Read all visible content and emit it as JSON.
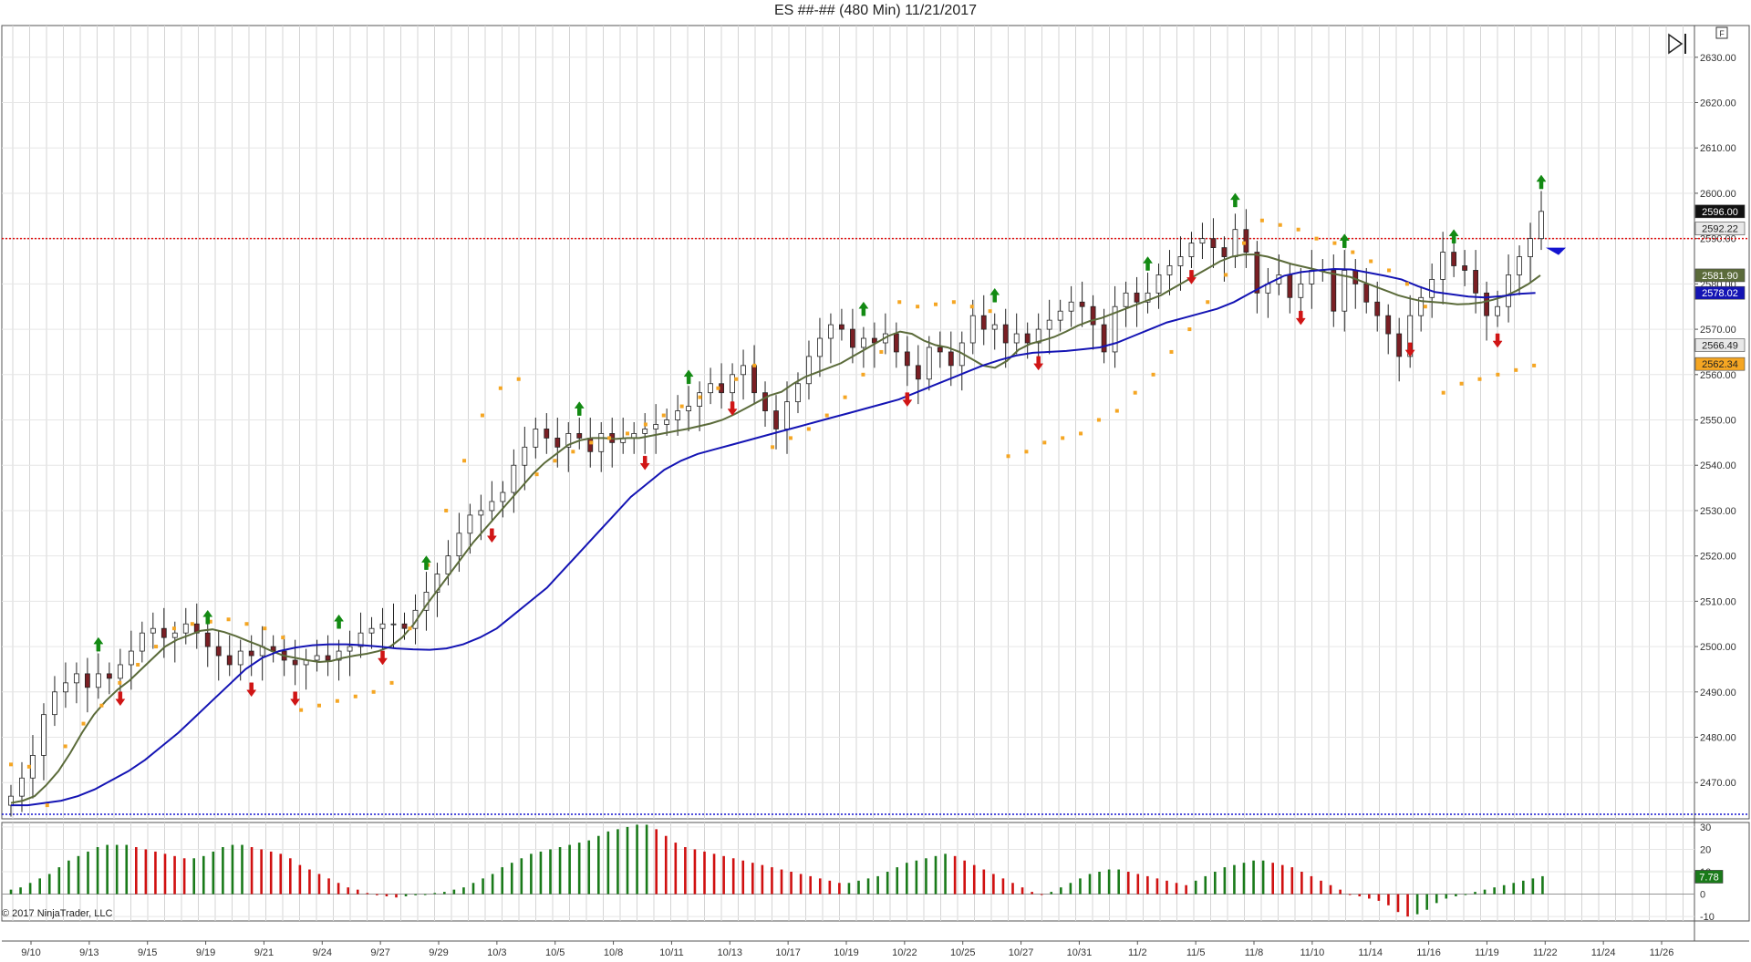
{
  "window": {
    "title": "ES ##-## (480 Min)  11/21/2017",
    "copyright": "© 2017 NinjaTrader, LLC"
  },
  "toolbar": {
    "icons": [
      "skip-to-end-icon",
      "panel-f-icon"
    ],
    "f_label": "F"
  },
  "colors": {
    "up": "#2a2a2a",
    "down": "#7a1f24",
    "ema_fast": "#5b6b3a",
    "ema_slow": "#1414b4",
    "psar": "#f5a623",
    "osc_up": "#1a7a1a",
    "osc_down": "#d01010",
    "hline_red": "#e01010",
    "hline_blue": "#1414d0",
    "signal_up": "#138a13",
    "signal_down": "#d01515"
  },
  "chart_data": [
    {
      "type": "candlestick",
      "title": "ES ##-## (480 Min)  11/21/2017",
      "x_ticks": [
        "9/10",
        "9/13",
        "9/15",
        "9/19",
        "9/21",
        "9/24",
        "9/27",
        "9/29",
        "10/3",
        "10/5",
        "10/8",
        "10/11",
        "10/13",
        "10/17",
        "10/19",
        "10/22",
        "10/25",
        "10/27",
        "10/31",
        "11/2",
        "11/5",
        "11/8",
        "11/10",
        "11/14",
        "11/16",
        "11/19",
        "11/22",
        "11/24",
        "11/26"
      ],
      "y_ticks": [
        2470,
        2480,
        2490,
        2500,
        2510,
        2520,
        2530,
        2540,
        2550,
        2560,
        2570,
        2580,
        2590,
        2600,
        2610,
        2620,
        2630
      ],
      "ylim": [
        2462,
        2637
      ],
      "grid": true,
      "series_close": [
        2467,
        2471,
        2476,
        2485,
        2490,
        2492,
        2494,
        2491,
        2494,
        2493,
        2496,
        2499,
        2503,
        2504,
        2502,
        2503,
        2505,
        2503,
        2500,
        2498,
        2496,
        2499,
        2498,
        2500,
        2499,
        2497,
        2496,
        2497,
        2498,
        2497,
        2499,
        2500,
        2503,
        2504,
        2505,
        2505,
        2504,
        2508,
        2512,
        2516,
        2520,
        2525,
        2529,
        2530,
        2532,
        2534,
        2540,
        2544,
        2548,
        2546,
        2544,
        2547,
        2546,
        2543,
        2547,
        2545,
        2546,
        2547,
        2548,
        2549,
        2550,
        2552,
        2553,
        2556,
        2558,
        2556,
        2560,
        2562,
        2556,
        2552,
        2548,
        2554,
        2558,
        2564,
        2568,
        2571,
        2570,
        2566,
        2568,
        2567,
        2569,
        2565,
        2562,
        2559,
        2566,
        2565,
        2562,
        2567,
        2573,
        2570,
        2571,
        2567,
        2569,
        2567,
        2570,
        2572,
        2574,
        2576,
        2575,
        2571,
        2565,
        2575,
        2578,
        2576,
        2578,
        2582,
        2584,
        2586,
        2589,
        2590,
        2588,
        2586,
        2592,
        2587,
        2578,
        2580,
        2582,
        2577,
        2580,
        2583,
        2583,
        2574,
        2583,
        2580,
        2576,
        2573,
        2569,
        2564,
        2573,
        2577,
        2581,
        2587,
        2584,
        2583,
        2578,
        2573,
        2575,
        2582,
        2586,
        2590,
        2596
      ],
      "ema_fast": [
        2465.5,
        2466.0,
        2467.0,
        2469.5,
        2472.5,
        2476.5,
        2481.0,
        2485.0,
        2488.0,
        2490.5,
        2492.5,
        2495.0,
        2497.5,
        2500.0,
        2501.5,
        2502.5,
        2503.5,
        2503.8,
        2503.2,
        2502.3,
        2501.2,
        2500.2,
        2499.0,
        2498.0,
        2497.5,
        2497.0,
        2496.6,
        2496.8,
        2497.5,
        2498.0,
        2498.4,
        2499.0,
        2500.0,
        2502.0,
        2505.0,
        2509.0,
        2512.5,
        2516.0,
        2519.5,
        2523.0,
        2526.0,
        2529.0,
        2532.0,
        2535.0,
        2538.0,
        2540.5,
        2542.5,
        2544.5,
        2545.5,
        2546.0,
        2546.0,
        2545.8,
        2546.0,
        2546.0,
        2546.5,
        2547.0,
        2547.5,
        2548.0,
        2548.6,
        2549.2,
        2550.0,
        2551.2,
        2552.6,
        2554.0,
        2555.4,
        2556.2,
        2558.0,
        2559.5,
        2560.5,
        2561.5,
        2562.5,
        2564.0,
        2565.5,
        2567.0,
        2568.5,
        2569.5,
        2569.0,
        2567.5,
        2566.5,
        2566.0,
        2565.0,
        2563.5,
        2562.0,
        2561.5,
        2563.0,
        2565.5,
        2566.8,
        2567.5,
        2568.3,
        2569.5,
        2570.8,
        2571.8,
        2572.5,
        2573.5,
        2574.5,
        2575.5,
        2576.5,
        2577.5,
        2579.0,
        2580.5,
        2582.0,
        2583.5,
        2585.0,
        2586.0,
        2586.5,
        2586.5,
        2586.0,
        2585.2,
        2584.4,
        2583.8,
        2583.2,
        2582.5,
        2582.0,
        2581.5,
        2580.5,
        2579.5,
        2578.5,
        2577.5,
        2576.8,
        2576.2,
        2576.0,
        2575.8,
        2575.5,
        2575.6,
        2575.9,
        2576.5,
        2577.3,
        2578.5,
        2580.0,
        2581.9
      ],
      "ema_slow": [
        2465,
        2465,
        2465.5,
        2466,
        2467,
        2468.5,
        2470.5,
        2472.5,
        2475,
        2478,
        2481,
        2484.5,
        2488,
        2491.5,
        2495,
        2497.5,
        2499,
        2499.8,
        2500.3,
        2500.5,
        2500.5,
        2500.3,
        2500.0,
        2499.6,
        2499.4,
        2499.3,
        2499.6,
        2500.5,
        2502,
        2504,
        2507,
        2510,
        2513,
        2517,
        2521,
        2525,
        2529,
        2533,
        2536,
        2539,
        2541,
        2542.5,
        2543.5,
        2544.5,
        2545.5,
        2546.5,
        2547.5,
        2548.5,
        2549.5,
        2550.5,
        2551.5,
        2552.5,
        2553.5,
        2554.5,
        2556,
        2557.5,
        2559,
        2560.5,
        2562,
        2563.2,
        2564.2,
        2564.8,
        2565.0,
        2565.2,
        2565.6,
        2566.0,
        2567.0,
        2568.5,
        2570.0,
        2571.5,
        2572.5,
        2573.5,
        2574.5,
        2576.0,
        2578.0,
        2580.0,
        2581.8,
        2582.6,
        2583.0,
        2583.3,
        2583.2,
        2582.5,
        2581.8,
        2581.0,
        2579.5,
        2578.2,
        2577.7,
        2577.2,
        2577.0,
        2577.3,
        2577.8,
        2578.0
      ],
      "psar": [
        2474,
        2473.5,
        2465,
        2478,
        2483,
        2487,
        2492,
        2496,
        2500,
        2504,
        2505,
        2505.5,
        2506,
        2505,
        2504,
        2502,
        2486,
        2487,
        2488,
        2489,
        2490,
        2492,
        2504,
        2518,
        2530,
        2541,
        2551,
        2557,
        2559,
        2538,
        2541,
        2543,
        2545,
        2546,
        2547,
        2549,
        2551,
        2553,
        2555,
        2557,
        2559,
        2562,
        2544,
        2546,
        2548,
        2551,
        2555,
        2560,
        2565,
        2576,
        2575,
        2575.5,
        2576,
        2575,
        2574,
        2542,
        2543,
        2545,
        2546,
        2547,
        2550,
        2552,
        2556,
        2560,
        2565,
        2570,
        2576,
        2582,
        2589,
        2594,
        2593,
        2592,
        2590,
        2589,
        2587,
        2585,
        2583,
        2580,
        2575,
        2556,
        2558,
        2559,
        2560,
        2561,
        2562
      ],
      "resistance_red": 2590,
      "support_blue": 2463,
      "price_labels": [
        {
          "label": "2596.00",
          "value": 2596.0,
          "bg": "#111111",
          "fg": "#ffffff"
        },
        {
          "label": "2592.22",
          "value": 2592.22,
          "bg": "#e8e8e8",
          "fg": "#222222"
        },
        {
          "label": "2581.90",
          "value": 2581.9,
          "bg": "#5b6b3a",
          "fg": "#ffffff"
        },
        {
          "label": "2578.02",
          "value": 2578.02,
          "bg": "#1414b4",
          "fg": "#ffffff"
        },
        {
          "label": "2566.49",
          "value": 2566.49,
          "bg": "#e8e8e8",
          "fg": "#222222"
        },
        {
          "label": "2562.34",
          "value": 2562.34,
          "bg": "#f5a623",
          "fg": "#222222"
        }
      ]
    },
    {
      "type": "bar",
      "y_ticks": [
        30,
        20,
        10,
        0,
        -10
      ],
      "ylim": [
        -12,
        32
      ],
      "values": [
        2,
        3,
        5,
        7,
        9,
        12,
        15,
        17,
        19,
        21,
        22,
        22,
        22,
        21,
        20,
        19,
        18,
        17,
        16,
        16,
        17,
        19,
        21,
        22,
        22,
        21,
        20,
        19,
        18,
        16,
        13,
        11,
        9,
        7,
        5,
        3,
        2,
        0.5,
        -0.5,
        -1,
        -1.5,
        -1,
        -0.5,
        0,
        0.5,
        1,
        2,
        3,
        5,
        7,
        9,
        12,
        14,
        16,
        18,
        19,
        20,
        21,
        22,
        23,
        24,
        26,
        28,
        29,
        30,
        31,
        31,
        29,
        26,
        23,
        21,
        20,
        19,
        18,
        17,
        16,
        15,
        14,
        13,
        12,
        11,
        10,
        9,
        8,
        7,
        6,
        5,
        5,
        6,
        7,
        8,
        10,
        12,
        14,
        15,
        16,
        17,
        18,
        17,
        15,
        13,
        11,
        9,
        7,
        5,
        3,
        1,
        0,
        1,
        3,
        5,
        7,
        9,
        10,
        11,
        11,
        10,
        9,
        8,
        7,
        6,
        5,
        4,
        6,
        8,
        10,
        12,
        13,
        14,
        15,
        15,
        14,
        13,
        12,
        10,
        8,
        6,
        4,
        2,
        0,
        -1,
        -2,
        -3,
        -5,
        -8,
        -10,
        -9,
        -7,
        -4,
        -2,
        -1,
        0,
        1,
        2,
        3,
        4,
        5,
        6,
        7,
        8
      ],
      "badge": {
        "label": "7.78",
        "value": 7.78
      }
    }
  ]
}
